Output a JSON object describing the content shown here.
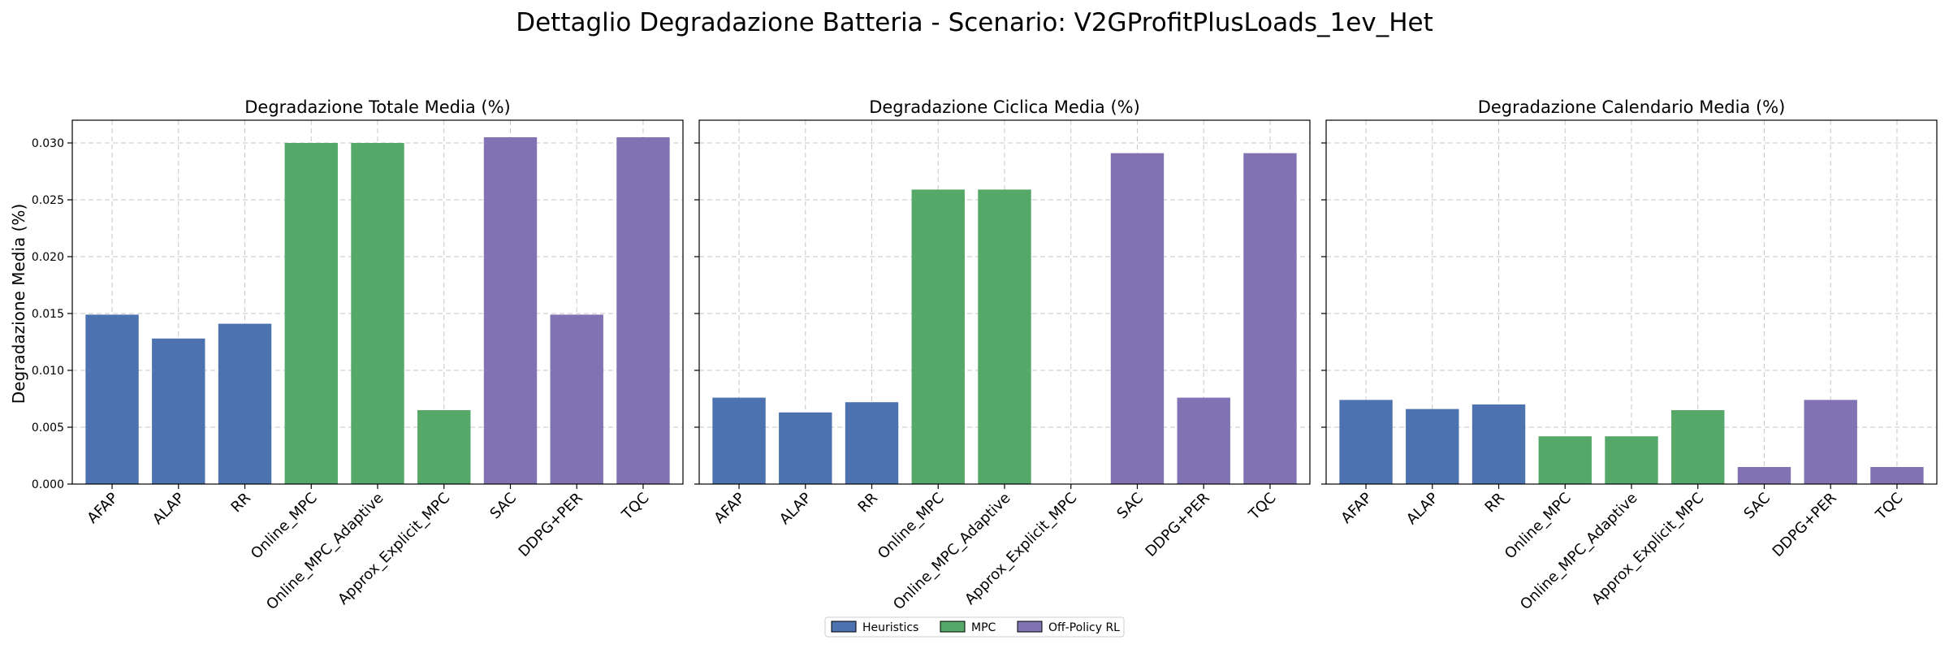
{
  "figure": {
    "title": "Dettaglio Degradazione Batteria - Scenario: V2GProfitPlusLoads_1ev_Het",
    "ylabel": "Degradazione Media (%)"
  },
  "legend": [
    {
      "name": "Heuristics",
      "color": "#4c72b0"
    },
    {
      "name": "MPC",
      "color": "#55a868"
    },
    {
      "name": "Off-Policy RL",
      "color": "#8172b3"
    }
  ],
  "chart_data": [
    {
      "type": "bar",
      "title": "Degradazione Totale Media (%)",
      "categories": [
        "AFAP",
        "ALAP",
        "RR",
        "Online_MPC",
        "Online_MPC_Adaptive",
        "Approx_Explicit_MPC",
        "SAC",
        "DDPG+PER",
        "TQC"
      ],
      "groups": [
        "Heuristics",
        "Heuristics",
        "Heuristics",
        "MPC",
        "MPC",
        "MPC",
        "Off-Policy RL",
        "Off-Policy RL",
        "Off-Policy RL"
      ],
      "values": [
        0.0149,
        0.0128,
        0.0141,
        0.03,
        0.03,
        0.0065,
        0.0305,
        0.0149,
        0.0305
      ],
      "ylim": [
        0,
        0.032
      ],
      "yticks": [
        "0.000",
        "0.005",
        "0.010",
        "0.015",
        "0.020",
        "0.025",
        "0.030"
      ],
      "grid": true
    },
    {
      "type": "bar",
      "title": "Degradazione Ciclica Media (%)",
      "categories": [
        "AFAP",
        "ALAP",
        "RR",
        "Online_MPC",
        "Online_MPC_Adaptive",
        "Approx_Explicit_MPC",
        "SAC",
        "DDPG+PER",
        "TQC"
      ],
      "groups": [
        "Heuristics",
        "Heuristics",
        "Heuristics",
        "MPC",
        "MPC",
        "MPC",
        "Off-Policy RL",
        "Off-Policy RL",
        "Off-Policy RL"
      ],
      "values": [
        0.0076,
        0.0063,
        0.0072,
        0.0259,
        0.0259,
        0.0,
        0.0291,
        0.0076,
        0.0291
      ],
      "ylim": [
        0,
        0.032
      ],
      "grid": true
    },
    {
      "type": "bar",
      "title": "Degradazione Calendario Media (%)",
      "categories": [
        "AFAP",
        "ALAP",
        "RR",
        "Online_MPC",
        "Online_MPC_Adaptive",
        "Approx_Explicit_MPC",
        "SAC",
        "DDPG+PER",
        "TQC"
      ],
      "groups": [
        "Heuristics",
        "Heuristics",
        "Heuristics",
        "MPC",
        "MPC",
        "MPC",
        "Off-Policy RL",
        "Off-Policy RL",
        "Off-Policy RL"
      ],
      "values": [
        0.0074,
        0.0066,
        0.007,
        0.0042,
        0.0042,
        0.0065,
        0.0015,
        0.0074,
        0.0015
      ],
      "ylim": [
        0,
        0.032
      ],
      "grid": true
    }
  ]
}
